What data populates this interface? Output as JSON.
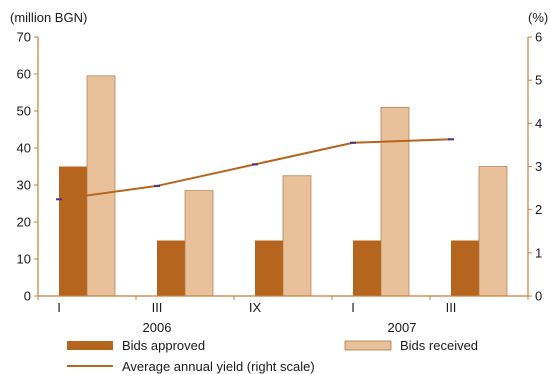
{
  "chart_data": {
    "type": "bar",
    "left_axis_label": "(million BGN)",
    "right_axis_label": "(%)",
    "categories": [
      "I",
      "III",
      "IX",
      "I",
      "III"
    ],
    "years": [
      {
        "label": "2006",
        "span": [
          0,
          2
        ]
      },
      {
        "label": "2007",
        "span": [
          3,
          4
        ]
      }
    ],
    "ylim": [
      0,
      70
    ],
    "yticks": [
      0,
      10,
      20,
      30,
      40,
      50,
      60,
      70
    ],
    "y2lim": [
      0,
      6
    ],
    "y2ticks": [
      0,
      1,
      2,
      3,
      4,
      5,
      6
    ],
    "series": [
      {
        "name": "Bids approved",
        "type": "bar",
        "axis": "left",
        "color": "#b5651d",
        "values": [
          35,
          15,
          15,
          15,
          15
        ]
      },
      {
        "name": "Bids received",
        "type": "bar",
        "axis": "left",
        "color": "#e8c09a",
        "values": [
          59.5,
          28.5,
          32.5,
          51,
          35
        ]
      },
      {
        "name": "Average annual yield (right scale)",
        "type": "line",
        "axis": "right",
        "color": "#b5651d",
        "values": [
          2.24,
          2.55,
          3.05,
          3.55,
          3.63
        ]
      }
    ],
    "axis_color": "#c8803a",
    "marker_color": "#3a3a8c",
    "grid": false,
    "legend_position": "bottom"
  }
}
